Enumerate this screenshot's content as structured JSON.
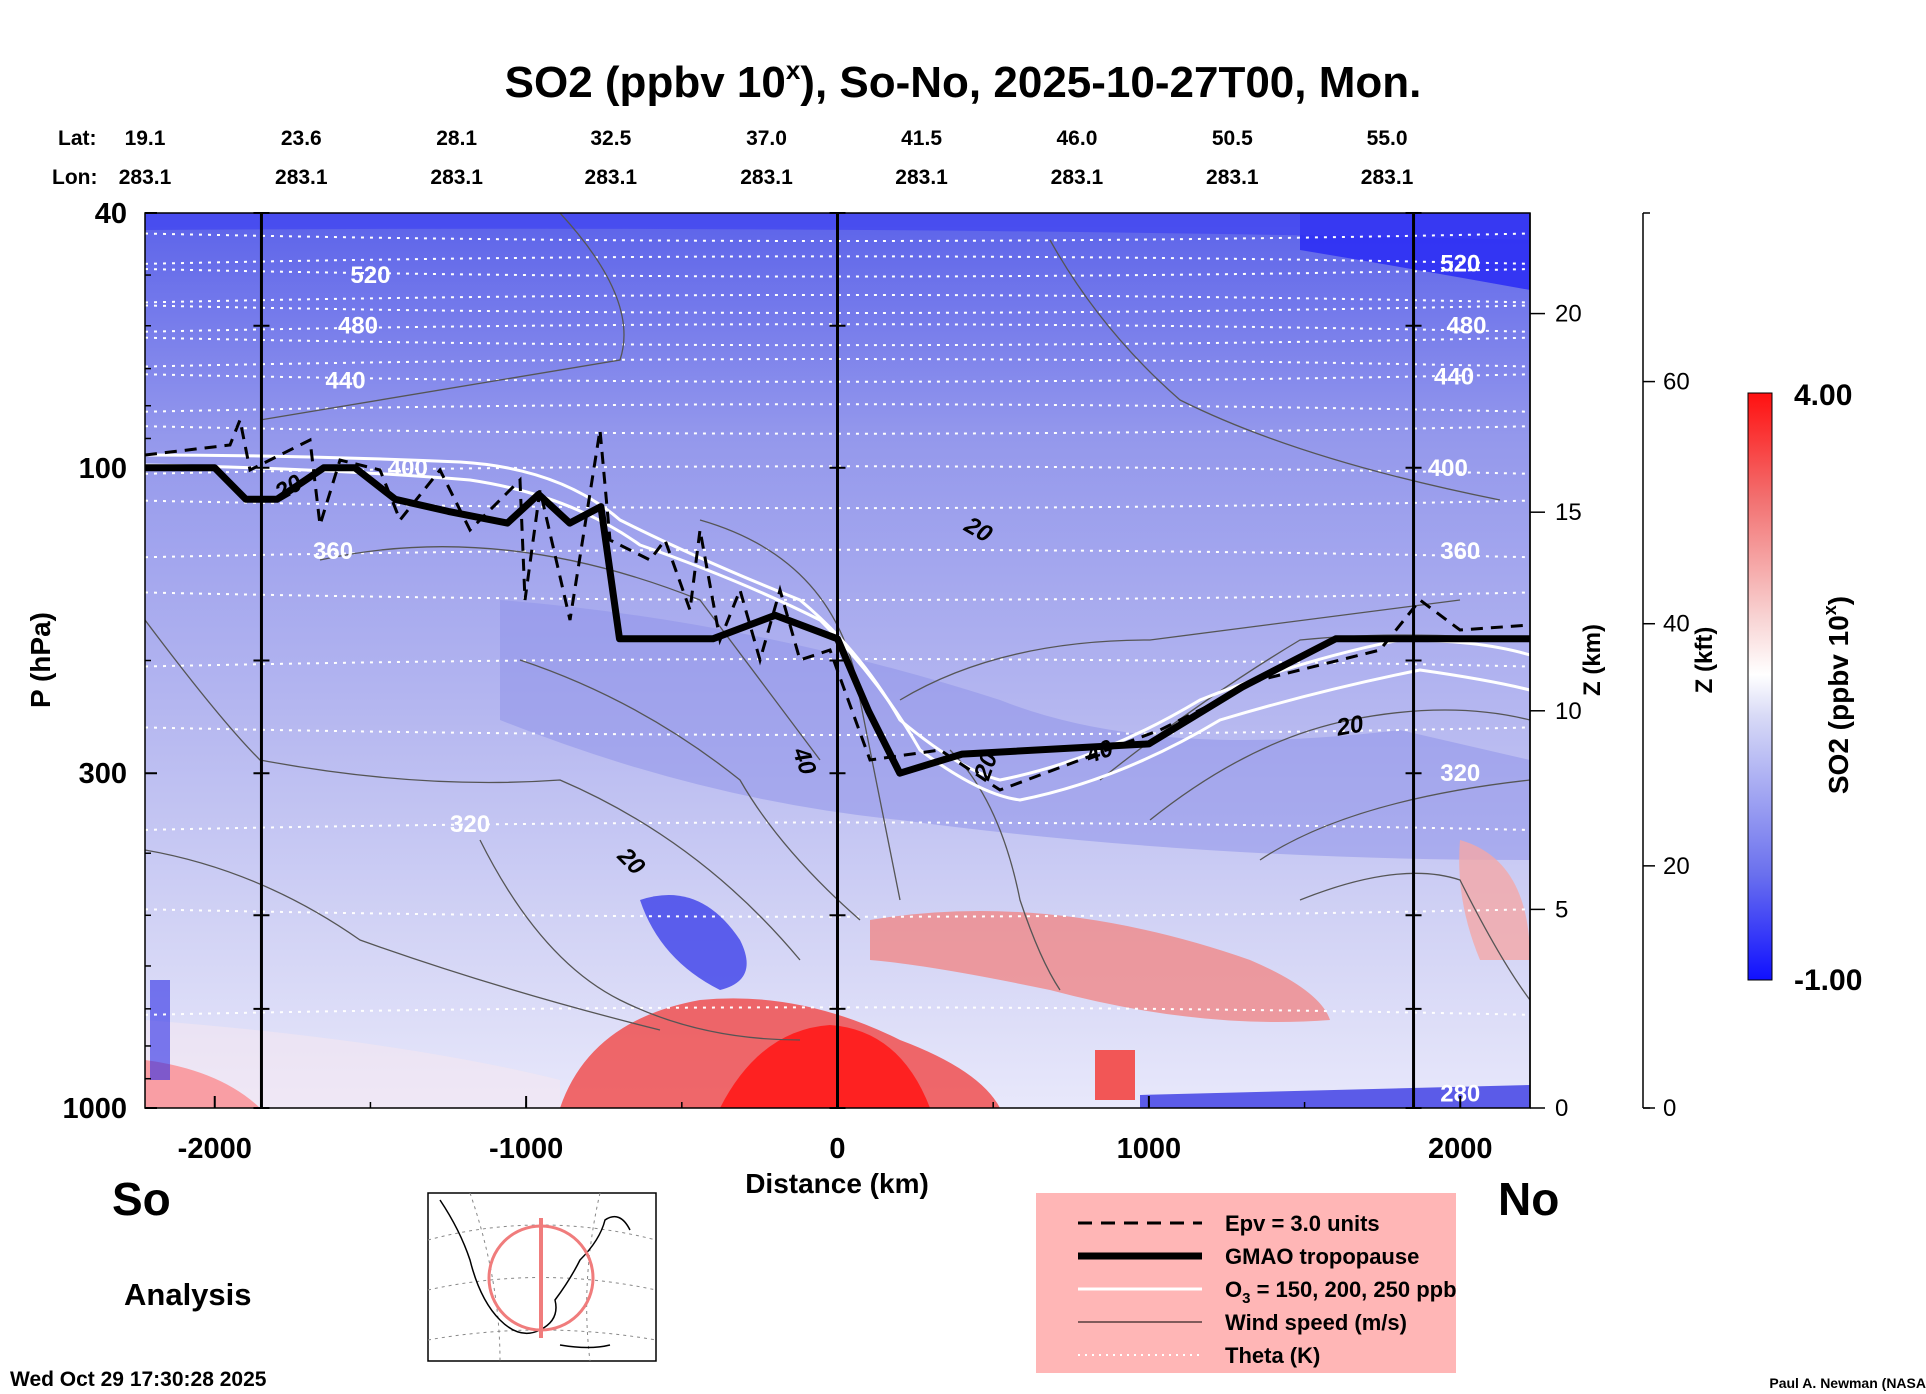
{
  "chart_data": {
    "type": "heatmap",
    "title": "SO2 (ppbv 10",
    "title_sup": "x",
    "title_rest": "), So-No, 2025-10-27T00, Mon.",
    "lat_label": "Lat:",
    "lon_label": "Lon:",
    "lat_ticks": [
      "19.1",
      "23.6",
      "28.1",
      "32.5",
      "37.0",
      "41.5",
      "46.0",
      "50.5",
      "55.0"
    ],
    "lon_ticks": [
      "283.1",
      "283.1",
      "283.1",
      "283.1",
      "283.1",
      "283.1",
      "283.1",
      "283.1",
      "283.1"
    ],
    "station_positions_km": [
      -2224,
      -1722,
      -1223,
      -728,
      -228,
      270,
      769,
      1268,
      1765
    ],
    "xlabel": "Distance (km)",
    "ylabel": "P (hPa)",
    "xlim": [
      -2224,
      2224
    ],
    "ylim": [
      1000,
      40
    ],
    "y_scale": "log",
    "x_ticks": [
      -2000,
      -1000,
      0,
      1000,
      2000
    ],
    "y_ticks": [
      40,
      100,
      300,
      1000
    ],
    "vertical_lines_km": [
      -1850,
      0,
      1850
    ],
    "z_km_label": "Z (km)",
    "z_km_ticks": [
      0,
      5,
      10,
      15,
      20
    ],
    "z_kft_label": "Z (kft)",
    "z_kft_ticks": [
      0,
      20,
      40,
      60
    ],
    "colorbar": {
      "label": "SO2 (ppbv 10",
      "label_sup": "x",
      "label_rest": ")",
      "min": -1.0,
      "max": 4.0,
      "min_label": "-1.00",
      "max_label": "4.00",
      "low_color": "#1a1aff",
      "high_color": "#ff2020"
    },
    "theta_contours": [
      {
        "label": "520",
        "p": 50
      },
      {
        "label": "480",
        "p": 60
      },
      {
        "label": "440",
        "p": 73
      },
      {
        "label": "400",
        "p": 100
      },
      {
        "label": "360",
        "p": 135
      },
      {
        "label": "320",
        "p": 360
      }
    ],
    "wind_labels": [
      "20",
      "20",
      "20",
      "40",
      "20",
      "40",
      "20"
    ],
    "theta_extra_labels": [
      "520",
      "480",
      "440",
      "400",
      "360",
      "320",
      "280"
    ],
    "tropopause": [
      [
        -2224,
        100
      ],
      [
        -2000,
        100
      ],
      [
        -1900,
        112
      ],
      [
        -1800,
        112
      ],
      [
        -1650,
        100
      ],
      [
        -1550,
        100
      ],
      [
        -1420,
        112
      ],
      [
        -1250,
        117
      ],
      [
        -1060,
        122
      ],
      [
        -960,
        110
      ],
      [
        -860,
        122
      ],
      [
        -760,
        115
      ],
      [
        -700,
        185
      ],
      [
        -400,
        185
      ],
      [
        -200,
        170
      ],
      [
        0,
        185
      ],
      [
        100,
        240
      ],
      [
        200,
        300
      ],
      [
        400,
        280
      ],
      [
        1000,
        270
      ],
      [
        1300,
        220
      ],
      [
        1600,
        185
      ],
      [
        2224,
        185
      ]
    ],
    "legend": [
      {
        "name": "Epv = 3.0 units",
        "style": "dashed"
      },
      {
        "name": "GMAO tropopause",
        "style": "thick"
      },
      {
        "name": "O",
        "sub": "3",
        "rest": " = 150, 200, 250 ppb",
        "style": "white"
      },
      {
        "name": "Wind speed (m/s)",
        "style": "thin"
      },
      {
        "name": "Theta (K)",
        "style": "dotted"
      }
    ],
    "legend_bg": "#ffb6b6",
    "left_end": "So",
    "right_end": "No",
    "analysis_label": "Analysis",
    "timestamp": "Wed Oct 29 17:30:28 2025",
    "credit": "Paul A. Newman (NASA"
  }
}
